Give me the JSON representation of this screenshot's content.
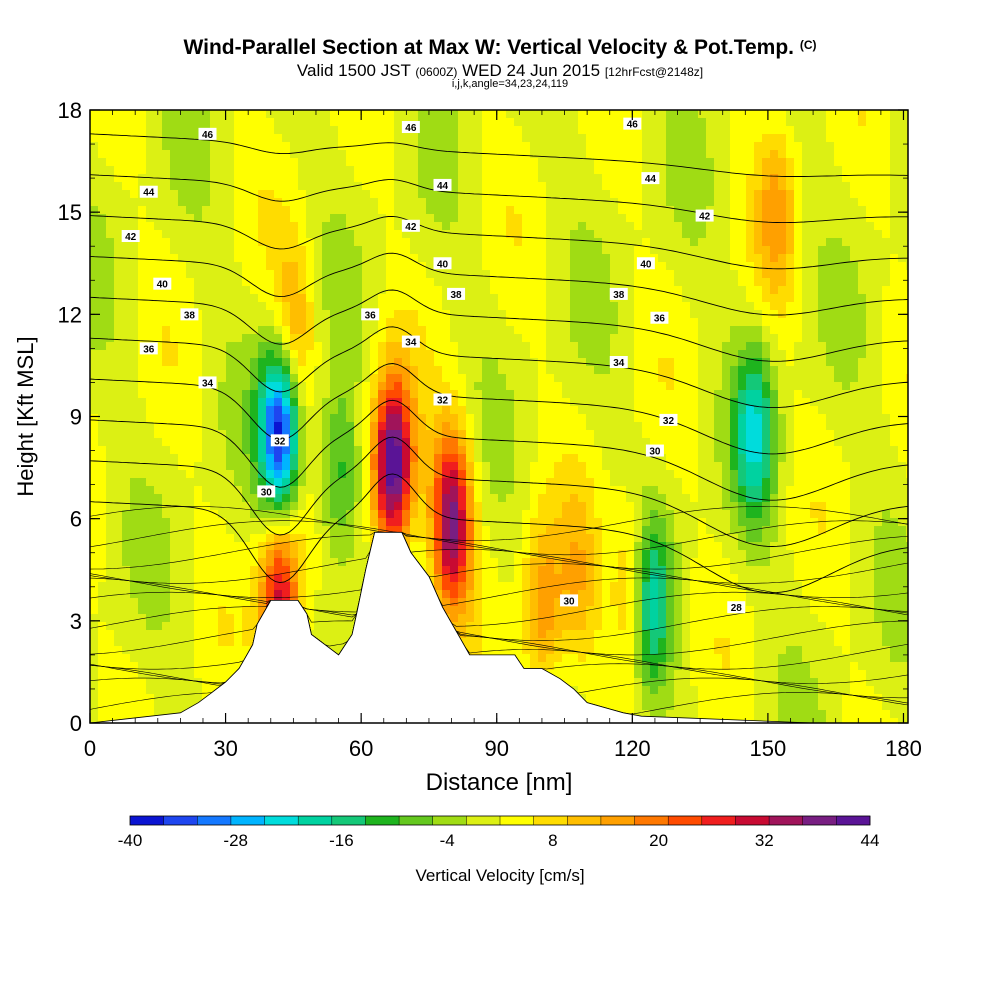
{
  "header": {
    "title": "Wind-Parallel Section at Max W: Vertical Velocity & Pot.Temp.",
    "copyright": "(C)",
    "valid_prefix": "Valid 1500 JST",
    "valid_utc": "(0600Z)",
    "valid_date": "WED 24 Jun 2015",
    "forecast": "[12hrFcst@2148z]",
    "indices": "i,j,k,angle=34,23,24,119"
  },
  "chart_data": {
    "type": "heatmap",
    "title": "Wind-Parallel Section at Max W: Vertical Velocity & Pot.Temp.",
    "xlabel": "Distance [nm]",
    "ylabel": "Height [Kft MSL]",
    "xlim": [
      0,
      181
    ],
    "ylim": [
      0,
      18
    ],
    "xticks": [
      0,
      30,
      60,
      90,
      120,
      150,
      180
    ],
    "yticks": [
      0,
      3,
      6,
      9,
      12,
      15,
      18
    ],
    "colorbar": {
      "label": "Vertical Velocity [cm/s]",
      "ticks": [
        -40,
        -28,
        -16,
        -4,
        8,
        20,
        32,
        44
      ],
      "colors": [
        "#0a14d2",
        "#1e46f0",
        "#1478ff",
        "#00b4ff",
        "#00dcdc",
        "#00d2a0",
        "#14c878",
        "#1eb41e",
        "#64c81e",
        "#a0dc14",
        "#dcf014",
        "#ffff00",
        "#ffdc00",
        "#ffbe00",
        "#ffa000",
        "#ff7800",
        "#ff4b00",
        "#f01e1e",
        "#c80a32",
        "#a0145a",
        "#781e82",
        "#5a1496"
      ]
    },
    "terrain_kft": [
      [
        0,
        0
      ],
      [
        20,
        0.3
      ],
      [
        24,
        0.6
      ],
      [
        27,
        0.9
      ],
      [
        30,
        1.2
      ],
      [
        33,
        1.6
      ],
      [
        36,
        2.3
      ],
      [
        37,
        2.9
      ],
      [
        40,
        3.6
      ],
      [
        46,
        3.6
      ],
      [
        48,
        3.2
      ],
      [
        49,
        2.6
      ],
      [
        52,
        2.3
      ],
      [
        55,
        2.0
      ],
      [
        58,
        2.6
      ],
      [
        59,
        3.2
      ],
      [
        61,
        4.5
      ],
      [
        63,
        5.6
      ],
      [
        69,
        5.6
      ],
      [
        71,
        5.0
      ],
      [
        75,
        4.3
      ],
      [
        78,
        3.4
      ],
      [
        81,
        2.7
      ],
      [
        84,
        2.0
      ],
      [
        94,
        2.0
      ],
      [
        96,
        1.6
      ],
      [
        100,
        1.6
      ],
      [
        104,
        1.3
      ],
      [
        107,
        1.0
      ],
      [
        110,
        0.6
      ],
      [
        118,
        0.3
      ],
      [
        122,
        0.2
      ],
      [
        160,
        0
      ],
      [
        181,
        0
      ]
    ],
    "w_features": [
      {
        "x": 42,
        "y": 8.5,
        "value": -40
      },
      {
        "x": 42,
        "y": 3.6,
        "value": 32
      },
      {
        "x": 67,
        "y": 7.5,
        "value": 44
      },
      {
        "x": 80,
        "y": 6.0,
        "value": 36
      },
      {
        "x": 124,
        "y": 3.5,
        "value": -20
      },
      {
        "x": 147,
        "y": 8.5,
        "value": -20
      },
      {
        "x": 55,
        "y": 7.2,
        "value": -14
      },
      {
        "x": 45,
        "y": 11.5,
        "value": 14
      },
      {
        "x": 100,
        "y": 3.2,
        "value": 16
      },
      {
        "x": 120,
        "y": 4.0,
        "value": 14
      },
      {
        "x": 152,
        "y": 15.0,
        "value": 12
      },
      {
        "x": 108,
        "y": 4.0,
        "value": 10
      }
    ],
    "theta_levels": [
      {
        "value": 28,
        "labels": [
          {
            "x": 143,
            "y": 3.4
          }
        ]
      },
      {
        "value": 30,
        "labels": [
          {
            "x": 39,
            "y": 6.8
          },
          {
            "x": 106,
            "y": 3.6
          },
          {
            "x": 125,
            "y": 8.0
          }
        ]
      },
      {
        "value": 32,
        "labels": [
          {
            "x": 42,
            "y": 8.3
          },
          {
            "x": 78,
            "y": 9.5
          },
          {
            "x": 128,
            "y": 8.9
          }
        ]
      },
      {
        "value": 34,
        "labels": [
          {
            "x": 26,
            "y": 10.0
          },
          {
            "x": 71,
            "y": 11.2
          },
          {
            "x": 117,
            "y": 10.6
          }
        ]
      },
      {
        "value": 36,
        "labels": [
          {
            "x": 13,
            "y": 11.0
          },
          {
            "x": 62,
            "y": 12.0
          },
          {
            "x": 126,
            "y": 11.9
          }
        ]
      },
      {
        "value": 38,
        "labels": [
          {
            "x": 22,
            "y": 12.0
          },
          {
            "x": 81,
            "y": 12.6
          },
          {
            "x": 117,
            "y": 12.6
          }
        ]
      },
      {
        "value": 40,
        "labels": [
          {
            "x": 16,
            "y": 12.9
          },
          {
            "x": 78,
            "y": 13.5
          },
          {
            "x": 123,
            "y": 13.5
          }
        ]
      },
      {
        "value": 42,
        "labels": [
          {
            "x": 9,
            "y": 14.3
          },
          {
            "x": 71,
            "y": 14.6
          },
          {
            "x": 136,
            "y": 14.9
          }
        ]
      },
      {
        "value": 44,
        "labels": [
          {
            "x": 13,
            "y": 15.6
          },
          {
            "x": 78,
            "y": 15.8
          },
          {
            "x": 124,
            "y": 16.0
          }
        ]
      },
      {
        "value": 46,
        "labels": [
          {
            "x": 26,
            "y": 17.3
          },
          {
            "x": 71,
            "y": 17.5
          },
          {
            "x": 120,
            "y": 17.6
          }
        ]
      }
    ]
  }
}
